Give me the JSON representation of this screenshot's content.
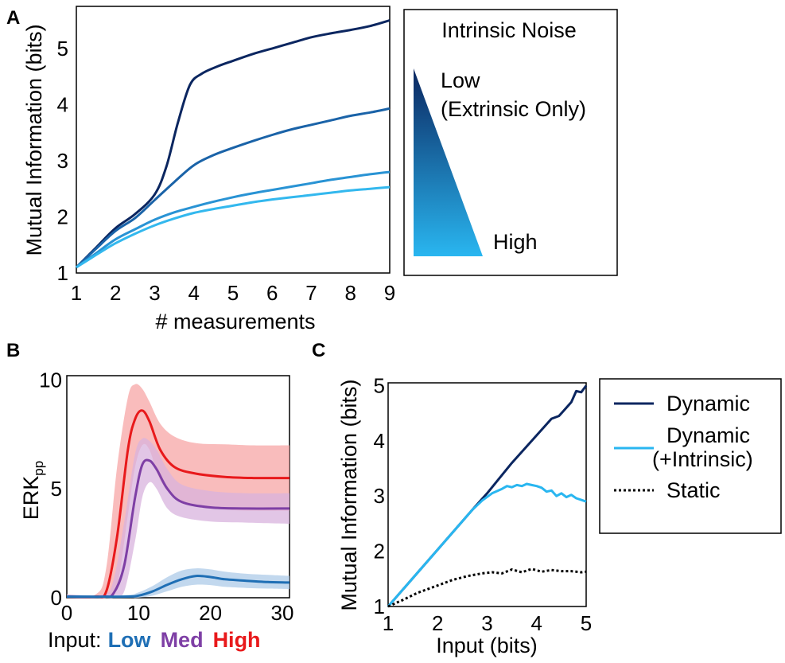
{
  "panels": {
    "A": {
      "letter": "A"
    },
    "B": {
      "letter": "B"
    },
    "C": {
      "letter": "C"
    }
  },
  "noise_legend": {
    "title": "Intrinsic Noise",
    "low_label": "Low",
    "low_sub_label": "(Extrinsic Only)",
    "high_label": "High",
    "colors": {
      "low": "#0b2660",
      "high": "#29b6f0"
    }
  },
  "input_legend": {
    "prefix": "Input:",
    "low": "Low",
    "med": "Med",
    "high": "High",
    "colors": {
      "low": "#1f6fb5",
      "med": "#7e3fa5",
      "high": "#e8191b"
    }
  },
  "chart_data": [
    {
      "panel": "A",
      "type": "line",
      "title": "",
      "xlabel": "# measurements",
      "ylabel": "Mutual Information (bits)",
      "xlim": [
        1,
        9
      ],
      "ylim": [
        1,
        5.75
      ],
      "xticks": [
        1,
        2,
        3,
        4,
        5,
        6,
        7,
        8,
        9
      ],
      "yticks": [
        1,
        2,
        3,
        4,
        5
      ],
      "grid": false,
      "series": [
        {
          "color": "#0b2660",
          "x": [
            1,
            1.5,
            2,
            2.5,
            3,
            3.3,
            3.6,
            3.9,
            4.2,
            4.6,
            5,
            5.5,
            6,
            6.5,
            7,
            7.5,
            8,
            8.5,
            9
          ],
          "y": [
            1.1,
            1.45,
            1.8,
            2.05,
            2.4,
            2.9,
            3.7,
            4.35,
            4.55,
            4.68,
            4.78,
            4.9,
            5.0,
            5.1,
            5.2,
            5.27,
            5.33,
            5.4,
            5.5
          ]
        },
        {
          "color": "#1a63a8",
          "x": [
            1,
            1.5,
            2,
            2.5,
            3,
            3.5,
            4,
            4.5,
            5,
            5.5,
            6,
            6.5,
            7,
            7.5,
            8,
            8.5,
            9
          ],
          "y": [
            1.1,
            1.43,
            1.75,
            1.98,
            2.3,
            2.62,
            2.92,
            3.1,
            3.23,
            3.35,
            3.46,
            3.56,
            3.64,
            3.72,
            3.8,
            3.86,
            3.93
          ]
        },
        {
          "color": "#2993d4",
          "x": [
            1,
            1.5,
            2,
            2.5,
            3,
            3.5,
            4,
            4.5,
            5,
            5.5,
            6,
            6.5,
            7,
            7.5,
            8,
            8.5,
            9
          ],
          "y": [
            1.1,
            1.35,
            1.6,
            1.78,
            1.95,
            2.08,
            2.18,
            2.27,
            2.35,
            2.42,
            2.48,
            2.54,
            2.6,
            2.66,
            2.71,
            2.76,
            2.8
          ]
        },
        {
          "color": "#33b8ee",
          "x": [
            1,
            1.5,
            2,
            2.5,
            3,
            3.5,
            4,
            4.5,
            5,
            5.5,
            6,
            6.5,
            7,
            7.5,
            8,
            8.5,
            9
          ],
          "y": [
            1.1,
            1.32,
            1.53,
            1.7,
            1.85,
            1.97,
            2.07,
            2.14,
            2.2,
            2.26,
            2.31,
            2.35,
            2.39,
            2.43,
            2.47,
            2.5,
            2.53
          ]
        }
      ]
    },
    {
      "panel": "B",
      "type": "line",
      "title": "",
      "xlabel": "",
      "ylabel": "ERK",
      "ylabel_subscript": "pp",
      "xlim": [
        0,
        31
      ],
      "ylim": [
        0,
        10.2
      ],
      "xticks": [
        0,
        10,
        20,
        30
      ],
      "yticks": [
        0,
        5,
        10
      ],
      "grid": false,
      "series": [
        {
          "name": "High",
          "color": "#e8191b",
          "band_color": "#f7a6a6",
          "x": [
            0,
            4,
            5.5,
            7,
            8.5,
            9.5,
            10.5,
            11.5,
            13,
            15,
            18,
            22,
            26,
            31
          ],
          "y": [
            0.05,
            0.05,
            0.3,
            2.8,
            6.8,
            8.2,
            8.6,
            8.1,
            6.8,
            6.0,
            5.7,
            5.55,
            5.5,
            5.5
          ],
          "upper": [
            0.15,
            0.15,
            1.4,
            6.0,
            9.2,
            9.8,
            9.6,
            9.0,
            8.0,
            7.4,
            7.1,
            7.05,
            7.0,
            7.0
          ],
          "lower": [
            0.0,
            0.0,
            0.0,
            0.5,
            3.8,
            6.0,
            7.0,
            6.8,
            5.4,
            4.6,
            4.2,
            4.05,
            4.0,
            4.0
          ]
        },
        {
          "name": "Med",
          "color": "#7e3fa5",
          "band_color": "#d8b3dd",
          "x": [
            0,
            5,
            6.5,
            8,
            9.5,
            10.5,
            11.5,
            12.5,
            14,
            16,
            20,
            25,
            31
          ],
          "y": [
            0.05,
            0.05,
            0.2,
            1.5,
            4.6,
            6.1,
            6.3,
            5.9,
            5.0,
            4.4,
            4.15,
            4.1,
            4.1
          ],
          "upper": [
            0.15,
            0.15,
            0.8,
            3.5,
            6.6,
            7.3,
            7.2,
            6.8,
            5.9,
            5.2,
            4.9,
            4.8,
            4.8
          ],
          "lower": [
            0.0,
            0.0,
            0.0,
            0.3,
            2.6,
            4.6,
            5.3,
            5.0,
            4.1,
            3.7,
            3.5,
            3.45,
            3.4
          ]
        },
        {
          "name": "Low",
          "color": "#1f6fb5",
          "band_color": "#aecbe8",
          "x": [
            0,
            8,
            10,
            12,
            14,
            16,
            18,
            20,
            22,
            25,
            28,
            31
          ],
          "y": [
            0.05,
            0.05,
            0.1,
            0.3,
            0.6,
            0.85,
            1.0,
            0.95,
            0.85,
            0.78,
            0.72,
            0.7
          ],
          "upper": [
            0.12,
            0.12,
            0.25,
            0.55,
            0.95,
            1.25,
            1.35,
            1.3,
            1.2,
            1.1,
            1.05,
            1.0
          ],
          "lower": [
            0.0,
            0.0,
            0.0,
            0.1,
            0.3,
            0.5,
            0.6,
            0.58,
            0.5,
            0.45,
            0.42,
            0.4
          ]
        }
      ]
    },
    {
      "panel": "C",
      "type": "line",
      "title": "",
      "xlabel": "Input (bits)",
      "ylabel": "Mutual Information (bits)",
      "xlim": [
        1,
        5
      ],
      "ylim": [
        1,
        5.05
      ],
      "xticks": [
        1,
        2,
        3,
        4,
        5
      ],
      "yticks": [
        1,
        2,
        3,
        4,
        5
      ],
      "grid": false,
      "series": [
        {
          "name": "Dynamic",
          "color": "#0b2660",
          "dash": "solid",
          "x": [
            1,
            2.7,
            3,
            3.5,
            4.0,
            4.3,
            4.45,
            4.55,
            4.7,
            4.8,
            4.9,
            5.0
          ],
          "y": [
            1,
            2.75,
            3.05,
            3.6,
            4.1,
            4.4,
            4.45,
            4.55,
            4.7,
            4.9,
            4.88,
            5.0
          ]
        },
        {
          "name": "Dynamic",
          "name_line2": "(+Intrinsic)",
          "color": "#29b6f0",
          "dash": "solid",
          "x": [
            1,
            2.7,
            2.9,
            3.1,
            3.3,
            3.4,
            3.5,
            3.6,
            3.7,
            3.8,
            3.9,
            4.0,
            4.1,
            4.2,
            4.3,
            4.4,
            4.5,
            4.6,
            4.7,
            4.8,
            4.9,
            5.0
          ],
          "y": [
            1,
            2.75,
            2.92,
            3.05,
            3.13,
            3.18,
            3.16,
            3.2,
            3.18,
            3.22,
            3.2,
            3.18,
            3.15,
            3.08,
            3.1,
            3.0,
            3.05,
            2.98,
            3.02,
            2.96,
            2.93,
            2.9
          ]
        },
        {
          "name": "Static",
          "color": "#000000",
          "dash": "dotted",
          "x": [
            1,
            1.3,
            1.6,
            2.0,
            2.3,
            2.6,
            2.9,
            3.1,
            3.3,
            3.5,
            3.7,
            3.9,
            4.1,
            4.3,
            4.5,
            4.7,
            4.9,
            5.0
          ],
          "y": [
            1,
            1.12,
            1.25,
            1.38,
            1.48,
            1.55,
            1.6,
            1.62,
            1.6,
            1.67,
            1.62,
            1.68,
            1.63,
            1.66,
            1.64,
            1.64,
            1.62,
            1.63
          ]
        }
      ]
    }
  ]
}
